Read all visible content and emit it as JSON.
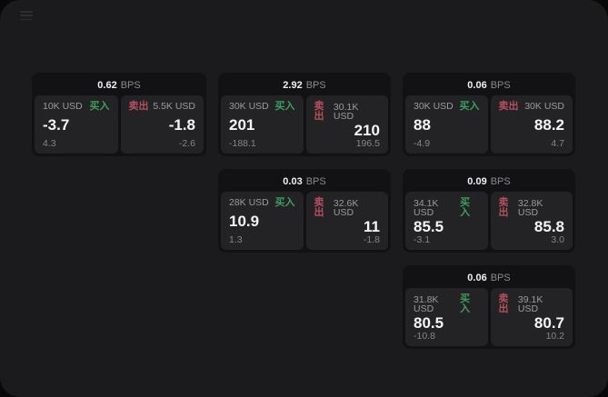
{
  "window": {
    "menu_icon": "hamburger-icon"
  },
  "colors": {
    "buy": "#3f9e5b",
    "sell": "#b5505c",
    "window-bg": "#1b1b1d",
    "card-bg": "#121214",
    "panel-bg": "#232326"
  },
  "cards": [
    {
      "bps_value": "0.62",
      "bps_unit": "BPS",
      "buy": {
        "size": "10K USD",
        "label": "买入",
        "price": "-3.7",
        "change": "4.3"
      },
      "sell": {
        "label": "卖出",
        "size": "5.5K USD",
        "price": "-1.8",
        "change": "-2.6"
      }
    },
    {
      "bps_value": "2.92",
      "bps_unit": "BPS",
      "buy": {
        "size": "30K USD",
        "label": "买入",
        "price": "201",
        "change": "-188.1"
      },
      "sell": {
        "label": "卖出",
        "size": "30.1K USD",
        "price": "210",
        "change": "196.5"
      }
    },
    {
      "bps_value": "0.06",
      "bps_unit": "BPS",
      "buy": {
        "size": "30K USD",
        "label": "买入",
        "price": "88",
        "change": "-4.9"
      },
      "sell": {
        "label": "卖出",
        "size": "30K USD",
        "price": "88.2",
        "change": "4.7"
      }
    },
    {
      "bps_value": "0.03",
      "bps_unit": "BPS",
      "buy": {
        "size": "28K USD",
        "label": "买入",
        "price": "10.9",
        "change": "1.3"
      },
      "sell": {
        "label": "卖出",
        "size": "32.6K USD",
        "price": "11",
        "change": "-1.8"
      }
    },
    {
      "bps_value": "0.09",
      "bps_unit": "BPS",
      "buy": {
        "size": "34.1K USD",
        "label": "买入",
        "price": "85.5",
        "change": "-3.1"
      },
      "sell": {
        "label": "卖出",
        "size": "32.8K USD",
        "price": "85.8",
        "change": "3.0"
      }
    },
    {
      "bps_value": "0.06",
      "bps_unit": "BPS",
      "buy": {
        "size": "31.8K USD",
        "label": "买入",
        "price": "80.5",
        "change": "-10.8"
      },
      "sell": {
        "label": "卖出",
        "size": "39.1K USD",
        "price": "80.7",
        "change": "10.2"
      }
    }
  ]
}
